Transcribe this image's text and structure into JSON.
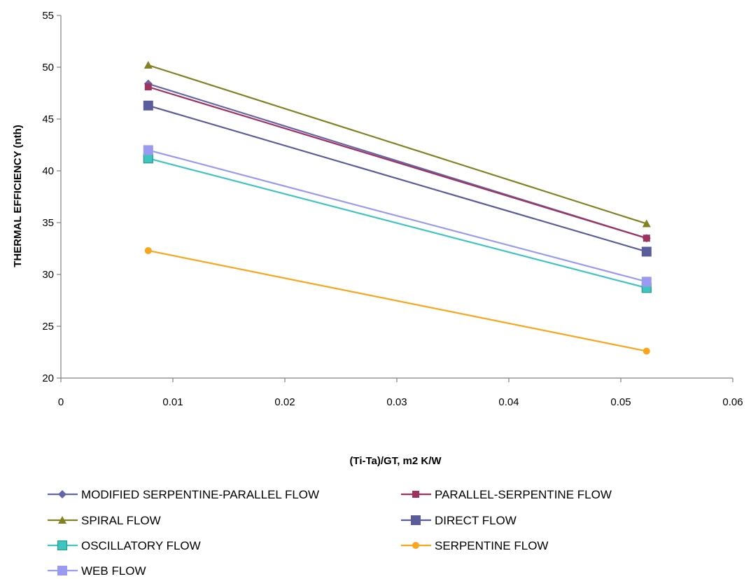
{
  "chart_data": {
    "type": "line",
    "title": "",
    "xlabel": "(Ti-Ta)/GT, m2 K/W",
    "ylabel": "THERMAL EFFICIENCY (nth)",
    "xlim": [
      0,
      0.06
    ],
    "ylim": [
      20,
      55
    ],
    "x_ticks": [
      0,
      0.01,
      0.02,
      0.03,
      0.04,
      0.05,
      0.06
    ],
    "x_tick_labels": [
      "0",
      "0.01",
      "0.02",
      "0.03",
      "0.04",
      "0.05",
      "0.06"
    ],
    "y_ticks": [
      20,
      25,
      30,
      35,
      40,
      45,
      50,
      55
    ],
    "y_tick_labels": [
      "20",
      "25",
      "30",
      "35",
      "40",
      "45",
      "50",
      "55"
    ],
    "grid": false,
    "legend_position": "bottom",
    "x": [
      0.0078,
      0.0523
    ],
    "series": [
      {
        "name": "MODIFIED SERPENTINE-PARALLEL FLOW",
        "values": [
          48.4,
          33.5
        ],
        "color": "#6366A8",
        "marker": "diamond"
      },
      {
        "name": "PARALLEL-SERPENTINE FLOW",
        "values": [
          48.1,
          33.5
        ],
        "color": "#A0325F",
        "marker": "square"
      },
      {
        "name": "SPIRAL FLOW",
        "values": [
          50.2,
          34.9
        ],
        "color": "#828224",
        "marker": "triangle"
      },
      {
        "name": "DIRECT FLOW",
        "values": [
          46.3,
          32.2
        ],
        "color": "#5B5C9B",
        "marker": "square-large"
      },
      {
        "name": "OSCILLATORY FLOW",
        "values": [
          41.2,
          28.7
        ],
        "color": "#3FC4C0",
        "marker": "square-mid"
      },
      {
        "name": "SERPENTINE FLOW",
        "values": [
          32.3,
          22.6
        ],
        "color": "#F9A51E",
        "marker": "circle"
      },
      {
        "name": "WEB FLOW",
        "values": [
          42.0,
          29.3
        ],
        "color": "#9A9AF0",
        "marker": "square-light"
      }
    ]
  }
}
